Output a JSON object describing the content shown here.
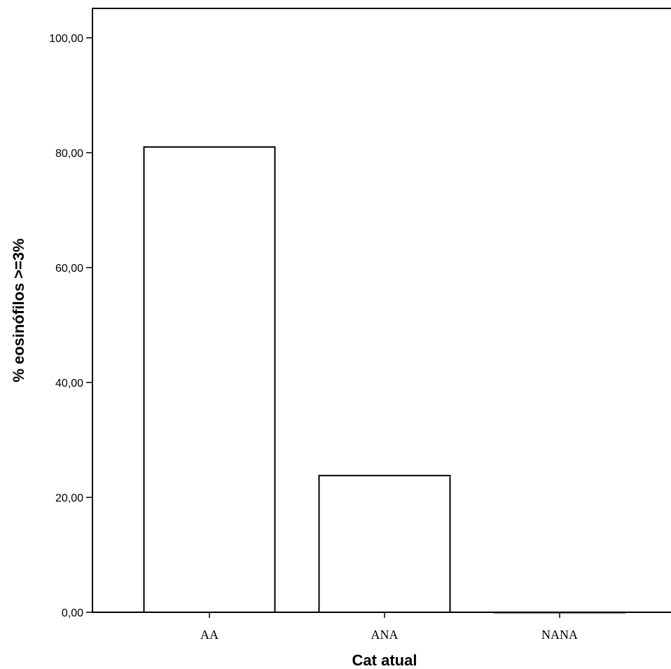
{
  "chart_data": {
    "type": "bar",
    "title": "",
    "xlabel": "Cat atual",
    "ylabel": "% eosinófilos >=3%",
    "categories": [
      "AA",
      "ANA",
      "NANA"
    ],
    "values": [
      81.0,
      23.8,
      0.0
    ],
    "ylim": [
      0,
      100
    ],
    "yticks": [
      0,
      20,
      40,
      60,
      80,
      100
    ],
    "ytick_labels": [
      "0,00",
      "20,00",
      "40,00",
      "60,00",
      "80,00",
      "100,00"
    ],
    "grid": false,
    "legend": "none",
    "colors": {
      "bar_fill": "#ffffff",
      "bar_stroke": "#000000",
      "axis": "#000000"
    }
  }
}
